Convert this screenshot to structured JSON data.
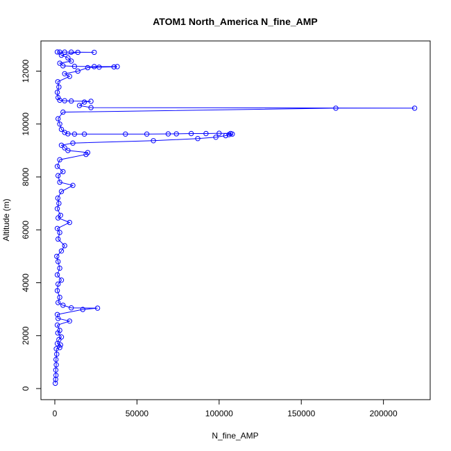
{
  "chart_data": {
    "type": "scatter",
    "title": "ATOM1 North_America N_fine_AMP",
    "xlabel": "N_fine_AMP",
    "ylabel": "Altitude (m)",
    "xlim": [
      0,
      220000
    ],
    "ylim": [
      0,
      12800
    ],
    "x_ticks": [
      0,
      50000,
      100000,
      150000,
      200000
    ],
    "y_ticks": [
      0,
      2000,
      4000,
      6000,
      8000,
      10000,
      12000
    ],
    "grid": false,
    "legend": "none",
    "series_color": "#0000ff",
    "marker": "open-circle",
    "connected": true,
    "points": [
      [
        300,
        200
      ],
      [
        500,
        350
      ],
      [
        700,
        500
      ],
      [
        600,
        700
      ],
      [
        900,
        900
      ],
      [
        700,
        1100
      ],
      [
        1200,
        1300
      ],
      [
        900,
        1500
      ],
      [
        3000,
        1550
      ],
      [
        3500,
        1650
      ],
      [
        1500,
        1700
      ],
      [
        2500,
        1850
      ],
      [
        4000,
        1950
      ],
      [
        1800,
        2100
      ],
      [
        3000,
        2200
      ],
      [
        1500,
        2400
      ],
      [
        9000,
        2550
      ],
      [
        2000,
        2650
      ],
      [
        1500,
        2800
      ],
      [
        17000,
        2990
      ],
      [
        26000,
        3040
      ],
      [
        10000,
        3050
      ],
      [
        5000,
        3150
      ],
      [
        2000,
        3250
      ],
      [
        3000,
        3450
      ],
      [
        1500,
        3700
      ],
      [
        2000,
        3950
      ],
      [
        4000,
        4100
      ],
      [
        1500,
        4300
      ],
      [
        3000,
        4550
      ],
      [
        2000,
        4800
      ],
      [
        1200,
        5000
      ],
      [
        4000,
        5200
      ],
      [
        6000,
        5400
      ],
      [
        2000,
        5650
      ],
      [
        3000,
        5900
      ],
      [
        1500,
        6050
      ],
      [
        9000,
        6280
      ],
      [
        2000,
        6450
      ],
      [
        3500,
        6550
      ],
      [
        1500,
        6800
      ],
      [
        2500,
        7000
      ],
      [
        1800,
        7200
      ],
      [
        4000,
        7450
      ],
      [
        11000,
        7680
      ],
      [
        3000,
        7800
      ],
      [
        2000,
        8050
      ],
      [
        5000,
        8200
      ],
      [
        1500,
        8400
      ],
      [
        3000,
        8650
      ],
      [
        19000,
        8850
      ],
      [
        20000,
        8920
      ],
      [
        8000,
        9000
      ],
      [
        6000,
        9100
      ],
      [
        4000,
        9200
      ],
      [
        11000,
        9280
      ],
      [
        60000,
        9370
      ],
      [
        87000,
        9450
      ],
      [
        98000,
        9500
      ],
      [
        104000,
        9560
      ],
      [
        106000,
        9600
      ],
      [
        108000,
        9620
      ],
      [
        107000,
        9640
      ],
      [
        100000,
        9650
      ],
      [
        92000,
        9640
      ],
      [
        83000,
        9640
      ],
      [
        74000,
        9630
      ],
      [
        69000,
        9625
      ],
      [
        56000,
        9620
      ],
      [
        43000,
        9620
      ],
      [
        18000,
        9620
      ],
      [
        12000,
        9620
      ],
      [
        8000,
        9630
      ],
      [
        6000,
        9680
      ],
      [
        4000,
        9800
      ],
      [
        3000,
        10000
      ],
      [
        2000,
        10200
      ],
      [
        5000,
        10450
      ],
      [
        171000,
        10600
      ],
      [
        219000,
        10600
      ],
      [
        22000,
        10620
      ],
      [
        15000,
        10700
      ],
      [
        18000,
        10830
      ],
      [
        22000,
        10860
      ],
      [
        10000,
        10870
      ],
      [
        6000,
        10880
      ],
      [
        3000,
        10900
      ],
      [
        2000,
        11000
      ],
      [
        1500,
        11200
      ],
      [
        2500,
        11400
      ],
      [
        1800,
        11600
      ],
      [
        9000,
        11800
      ],
      [
        6000,
        11900
      ],
      [
        14000,
        12000
      ],
      [
        20000,
        12130
      ],
      [
        27000,
        12150
      ],
      [
        36000,
        12160
      ],
      [
        38000,
        12170
      ],
      [
        24000,
        12170
      ],
      [
        12000,
        12180
      ],
      [
        5000,
        12200
      ],
      [
        3000,
        12300
      ],
      [
        10000,
        12380
      ],
      [
        8000,
        12500
      ],
      [
        4000,
        12600
      ],
      [
        14000,
        12710
      ],
      [
        24000,
        12710
      ],
      [
        10000,
        12720
      ],
      [
        6000,
        12720
      ],
      [
        3000,
        12720
      ],
      [
        1500,
        12725
      ]
    ]
  }
}
